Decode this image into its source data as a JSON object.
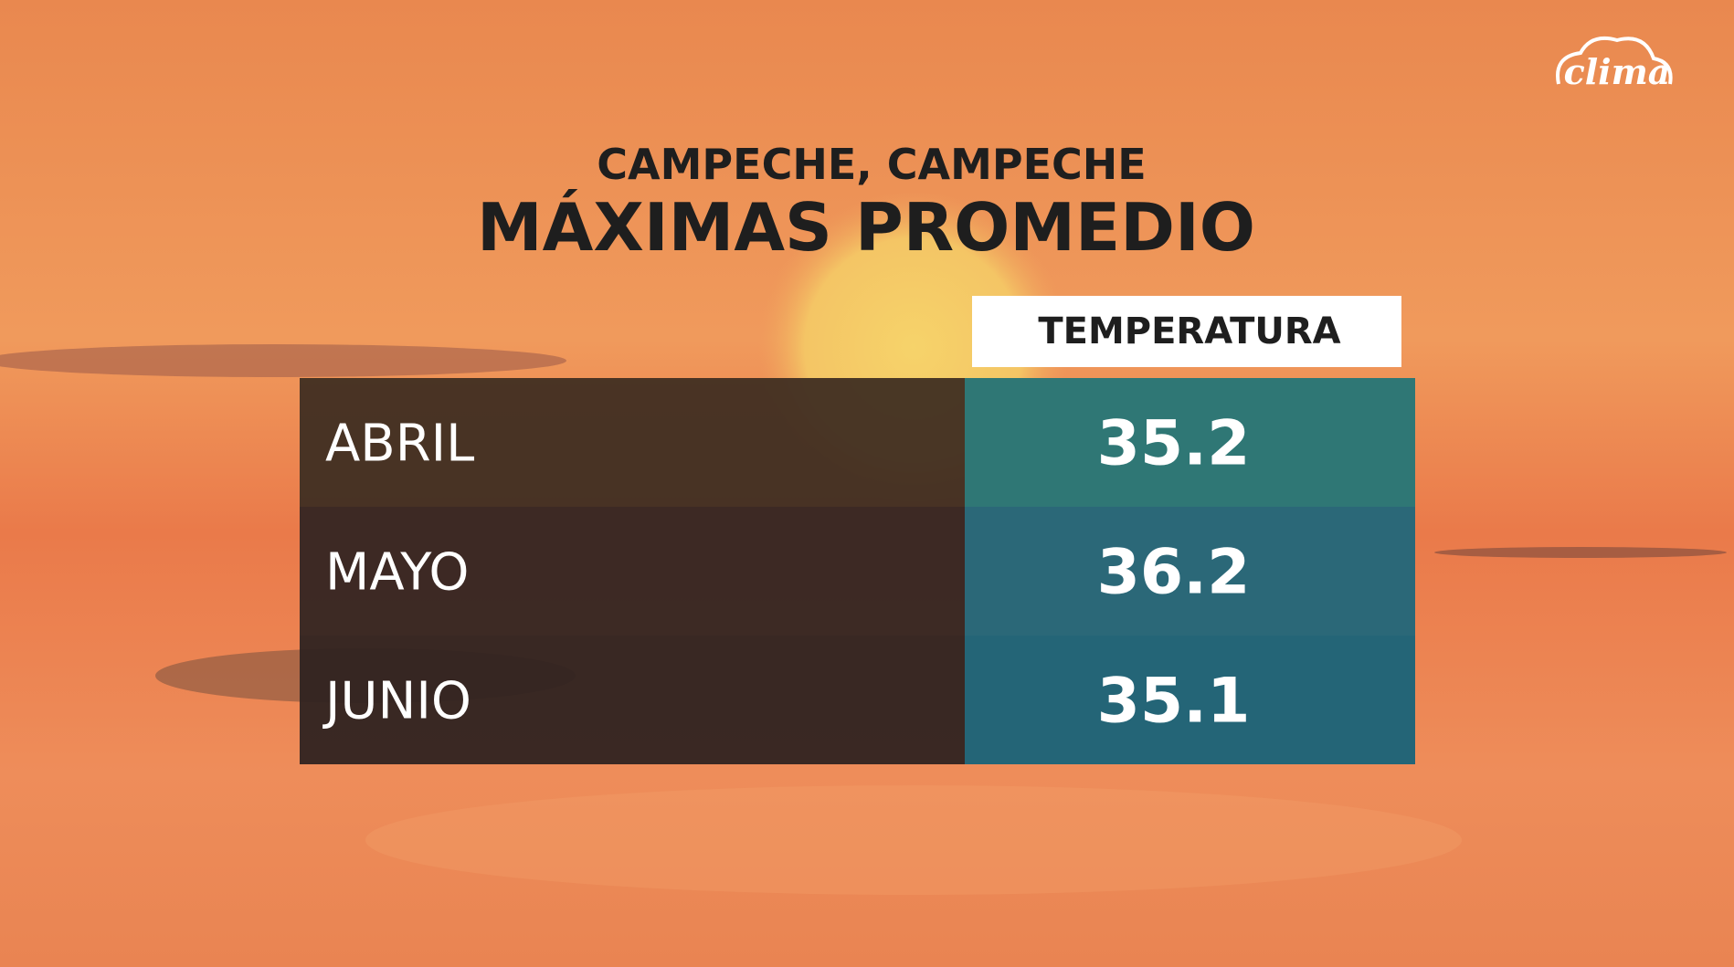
{
  "logo": "clima",
  "header": {
    "location": "CAMPECHE, CAMPECHE",
    "title": "MÁXIMAS PROMEDIO"
  },
  "table": {
    "columns": [
      "TEMPERATURA"
    ],
    "rows": [
      [
        "ABRIL",
        35.2
      ],
      [
        "MAYO",
        36.2
      ],
      [
        "JUNIO",
        35.1
      ]
    ]
  }
}
